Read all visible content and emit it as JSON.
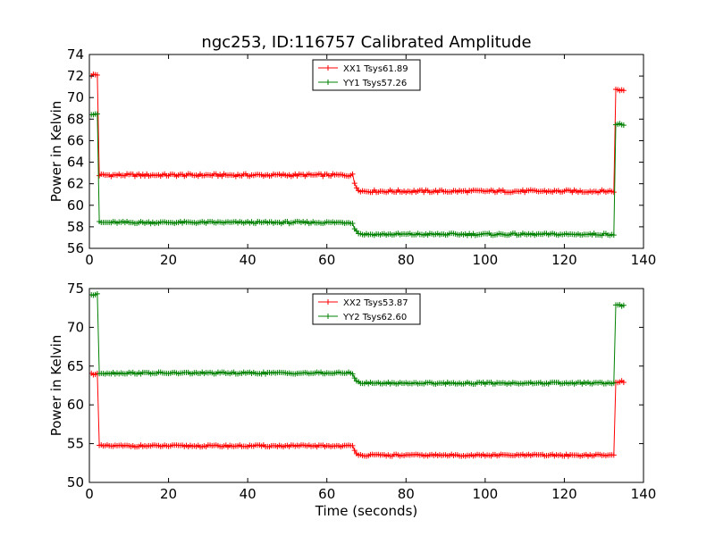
{
  "figure": {
    "title": "ngc253, ID:116757 Calibrated Amplitude",
    "xlabel": "Time (seconds)"
  },
  "colors": {
    "xx": "#ff0000",
    "yy": "#008000"
  },
  "chart_data": [
    {
      "type": "line",
      "title": "ngc253, ID:116757 Calibrated Amplitude",
      "xlabel": "",
      "ylabel": "Power in Kelvin",
      "xlim": [
        0,
        140
      ],
      "ylim": [
        56,
        74
      ],
      "xticks": [
        0,
        20,
        40,
        60,
        80,
        100,
        120,
        140
      ],
      "yticks": [
        56,
        58,
        60,
        62,
        64,
        66,
        68,
        70,
        72,
        74
      ],
      "grid": false,
      "legend": "top-center",
      "series": [
        {
          "name": "XX1 Tsys61.89",
          "color": "#ff0000",
          "profile": {
            "t_start": 0.5,
            "t_end": 135,
            "step": 0.5,
            "pre_level": 72.1,
            "pre_end": 2.2,
            "level1": 62.8,
            "level1_end": 66.5,
            "level2": 61.3,
            "settle_end": 69.5,
            "level2_end": 132.8,
            "post_level": 70.7,
            "noise": 0.12
          }
        },
        {
          "name": "YY1 Tsys57.26",
          "color": "#008000",
          "profile": {
            "t_start": 0.5,
            "t_end": 135,
            "step": 0.5,
            "pre_level": 68.5,
            "pre_end": 2.2,
            "level1": 58.4,
            "level1_end": 66.5,
            "level2": 57.3,
            "settle_end": 69.5,
            "level2_end": 132.8,
            "post_level": 67.5,
            "noise": 0.1
          }
        }
      ]
    },
    {
      "type": "line",
      "title": "",
      "xlabel": "Time (seconds)",
      "ylabel": "Power in Kelvin",
      "xlim": [
        0,
        140
      ],
      "ylim": [
        50,
        75
      ],
      "xticks": [
        0,
        20,
        40,
        60,
        80,
        100,
        120,
        140
      ],
      "yticks": [
        50,
        55,
        60,
        65,
        70,
        75
      ],
      "grid": false,
      "legend": "top-center",
      "series": [
        {
          "name": "XX2 Tsys53.87",
          "color": "#ff0000",
          "profile": {
            "t_start": 0.5,
            "t_end": 135,
            "step": 0.5,
            "pre_level": 64.0,
            "pre_end": 2.2,
            "level1": 54.7,
            "level1_end": 66.5,
            "level2": 53.5,
            "settle_end": 69.5,
            "level2_end": 132.8,
            "post_level": 63.0,
            "noise": 0.12
          }
        },
        {
          "name": "YY2 Tsys62.60",
          "color": "#008000",
          "profile": {
            "t_start": 0.5,
            "t_end": 135,
            "step": 0.5,
            "pre_level": 74.2,
            "pre_end": 2.2,
            "level1": 64.1,
            "level1_end": 66.5,
            "level2": 62.8,
            "settle_end": 69.5,
            "level2_end": 132.8,
            "post_level": 72.8,
            "noise": 0.12
          }
        }
      ]
    }
  ]
}
